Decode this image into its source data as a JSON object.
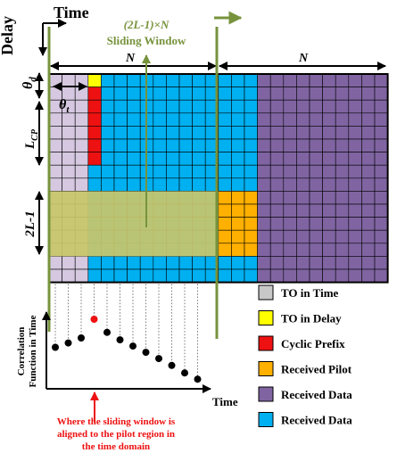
{
  "axes": {
    "time_label": "Time",
    "delay_label": "Delay"
  },
  "window": {
    "size_label": "(2L-1)×N",
    "title": "Sliding Window"
  },
  "dims": {
    "n_left": "N",
    "n_right": "N",
    "theta_d_main": "θ",
    "theta_d_sub": "d",
    "theta_t_main": "θ",
    "theta_t_sub": "t",
    "lcp_main": "L",
    "lcp_sub": "CP",
    "pilot_len": "2L-1"
  },
  "legend": {
    "items": [
      {
        "label": "TO in Time",
        "color": "#c8c8c8"
      },
      {
        "label": "TO in Delay",
        "color": "#ffff00"
      },
      {
        "label": "Cyclic Prefix",
        "color": "#ee1111"
      },
      {
        "label": "Received Pilot",
        "color": "#ffb000"
      },
      {
        "label": "Received Data",
        "color": "#8064a2"
      },
      {
        "label": "Received Data",
        "color": "#00b0f0"
      }
    ]
  },
  "correlation": {
    "ylabel_line1": "Correlation",
    "ylabel_line2": "Function in Time",
    "xlabel": "Time",
    "points": [
      0.55,
      0.62,
      0.7,
      1.0,
      0.79,
      0.67,
      0.57,
      0.47,
      0.37,
      0.26,
      0.14,
      0.04
    ],
    "peak_index": 3,
    "annotation_line1": "Where the sliding window is",
    "annotation_line2": "aligned to the pilot region in",
    "annotation_line3": "the time domain"
  },
  "colors": {
    "gray": "#c8c8c8",
    "lavender": "#d5c8e0",
    "cyan": "#00b0f0",
    "purple": "#8064a2",
    "yellow": "#ffff00",
    "red": "#ee1111",
    "orange": "#ffb000",
    "window_green": "#77933c",
    "window_fill": "#c9c76a"
  }
}
